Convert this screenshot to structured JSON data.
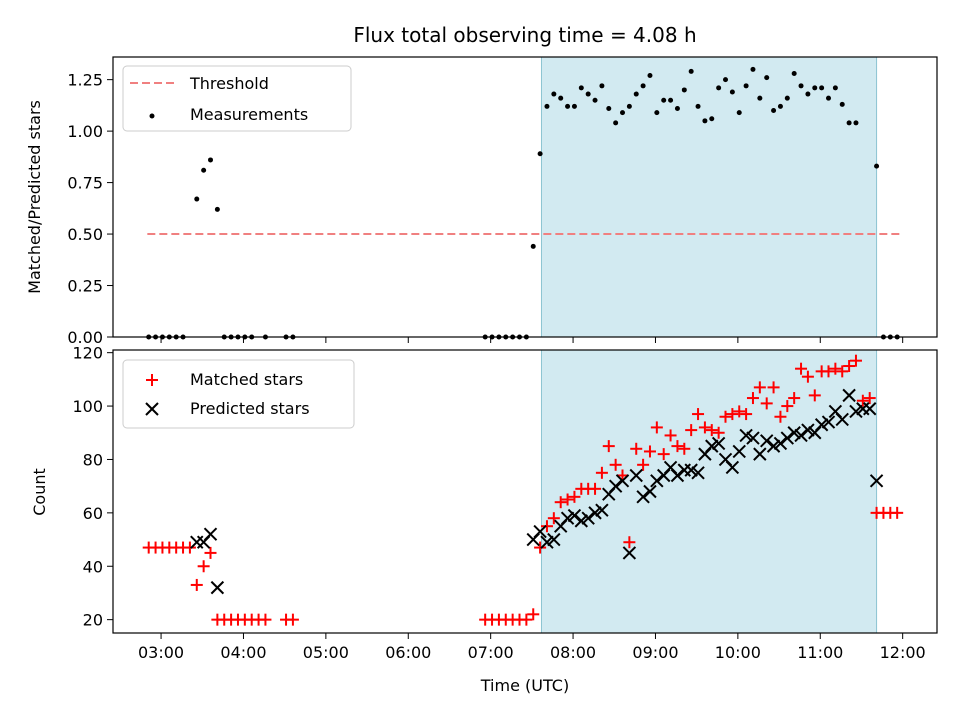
{
  "chart_data": [
    {
      "type": "scatter",
      "title": "Flux total observing time = 4.08 h",
      "ylabel": "Matched/Predicted stars",
      "xlabel": "",
      "xlim": [
        "02:25",
        "12:25"
      ],
      "ylim": [
        0,
        1.36
      ],
      "yticks": [
        "0.00",
        "0.25",
        "0.50",
        "0.75",
        "1.00",
        "1.25"
      ],
      "grid": false,
      "legend_position": "upper-left",
      "shaded_region": {
        "start": "07:37",
        "end": "11:41",
        "color": "#add8e6"
      },
      "threshold": {
        "name": "Threshold",
        "value": 0.5,
        "start": "02:50",
        "end": "12:00",
        "color": "#f08080"
      },
      "series": [
        {
          "name": "Measurements",
          "color": "#000000",
          "marker": "dot",
          "points": [
            [
              "02:51",
              0
            ],
            [
              "02:56",
              0
            ],
            [
              "03:01",
              0
            ],
            [
              "03:06",
              0
            ],
            [
              "03:11",
              0
            ],
            [
              "03:16",
              0
            ],
            [
              "03:26",
              0.67
            ],
            [
              "03:31",
              0.81
            ],
            [
              "03:36",
              0.86
            ],
            [
              "03:41",
              0.62
            ],
            [
              "03:46",
              0
            ],
            [
              "03:51",
              0
            ],
            [
              "03:56",
              0
            ],
            [
              "04:01",
              0
            ],
            [
              "04:06",
              0
            ],
            [
              "04:16",
              0
            ],
            [
              "04:31",
              0
            ],
            [
              "04:36",
              0
            ],
            [
              "06:56",
              0
            ],
            [
              "07:01",
              0
            ],
            [
              "07:06",
              0
            ],
            [
              "07:11",
              0
            ],
            [
              "07:16",
              0
            ],
            [
              "07:21",
              0
            ],
            [
              "07:26",
              0
            ],
            [
              "07:31",
              0.44
            ],
            [
              "07:36",
              0.89
            ],
            [
              "07:41",
              1.12
            ],
            [
              "07:46",
              1.18
            ],
            [
              "07:51",
              1.16
            ],
            [
              "07:56",
              1.12
            ],
            [
              "08:01",
              1.12
            ],
            [
              "08:06",
              1.21
            ],
            [
              "08:11",
              1.18
            ],
            [
              "08:16",
              1.15
            ],
            [
              "08:21",
              1.22
            ],
            [
              "08:26",
              1.11
            ],
            [
              "08:31",
              1.04
            ],
            [
              "08:36",
              1.09
            ],
            [
              "08:41",
              1.12
            ],
            [
              "08:46",
              1.18
            ],
            [
              "08:51",
              1.22
            ],
            [
              "08:56",
              1.27
            ],
            [
              "09:01",
              1.09
            ],
            [
              "09:06",
              1.15
            ],
            [
              "09:11",
              1.15
            ],
            [
              "09:16",
              1.11
            ],
            [
              "09:21",
              1.2
            ],
            [
              "09:26",
              1.29
            ],
            [
              "09:31",
              1.12
            ],
            [
              "09:36",
              1.05
            ],
            [
              "09:41",
              1.06
            ],
            [
              "09:46",
              1.21
            ],
            [
              "09:51",
              1.25
            ],
            [
              "09:56",
              1.19
            ],
            [
              "10:01",
              1.09
            ],
            [
              "10:06",
              1.22
            ],
            [
              "10:11",
              1.3
            ],
            [
              "10:16",
              1.16
            ],
            [
              "10:21",
              1.26
            ],
            [
              "10:26",
              1.1
            ],
            [
              "10:31",
              1.12
            ],
            [
              "10:36",
              1.16
            ],
            [
              "10:41",
              1.28
            ],
            [
              "10:46",
              1.22
            ],
            [
              "10:51",
              1.18
            ],
            [
              "10:56",
              1.21
            ],
            [
              "11:01",
              1.21
            ],
            [
              "11:06",
              1.16
            ],
            [
              "11:11",
              1.21
            ],
            [
              "11:16",
              1.13
            ],
            [
              "11:21",
              1.04
            ],
            [
              "11:26",
              1.04
            ],
            [
              "11:41",
              0.83
            ],
            [
              "11:46",
              0
            ],
            [
              "11:51",
              0
            ],
            [
              "11:56",
              0
            ]
          ]
        }
      ]
    },
    {
      "type": "scatter",
      "title": "",
      "ylabel": "Count",
      "xlabel": "Time (UTC)",
      "xlim": [
        "02:25",
        "12:25"
      ],
      "ylim": [
        15,
        121
      ],
      "xticks": [
        "03:00",
        "04:00",
        "05:00",
        "06:00",
        "07:00",
        "08:00",
        "09:00",
        "10:00",
        "11:00",
        "12:00"
      ],
      "yticks": [
        "20",
        "40",
        "60",
        "80",
        "100",
        "120"
      ],
      "grid": false,
      "legend_position": "upper-left",
      "shaded_region": {
        "start": "07:37",
        "end": "11:41",
        "color": "#add8e6"
      },
      "series": [
        {
          "name": "Matched stars",
          "color": "#ff0000",
          "marker": "plus",
          "points": [
            [
              "02:51",
              47
            ],
            [
              "02:56",
              47
            ],
            [
              "03:01",
              47
            ],
            [
              "03:06",
              47
            ],
            [
              "03:11",
              47
            ],
            [
              "03:16",
              47
            ],
            [
              "03:21",
              47
            ],
            [
              "03:26",
              33
            ],
            [
              "03:31",
              40
            ],
            [
              "03:36",
              45
            ],
            [
              "03:41",
              20
            ],
            [
              "03:46",
              20
            ],
            [
              "03:51",
              20
            ],
            [
              "03:56",
              20
            ],
            [
              "04:01",
              20
            ],
            [
              "04:06",
              20
            ],
            [
              "04:11",
              20
            ],
            [
              "04:16",
              20
            ],
            [
              "04:31",
              20
            ],
            [
              "04:36",
              20
            ],
            [
              "06:56",
              20
            ],
            [
              "07:01",
              20
            ],
            [
              "07:06",
              20
            ],
            [
              "07:11",
              20
            ],
            [
              "07:16",
              20
            ],
            [
              "07:21",
              20
            ],
            [
              "07:26",
              20
            ],
            [
              "07:31",
              22
            ],
            [
              "07:36",
              47
            ],
            [
              "07:41",
              55
            ],
            [
              "07:46",
              58
            ],
            [
              "07:51",
              64
            ],
            [
              "07:56",
              65
            ],
            [
              "08:01",
              66
            ],
            [
              "08:06",
              69
            ],
            [
              "08:11",
              69
            ],
            [
              "08:16",
              69
            ],
            [
              "08:21",
              75
            ],
            [
              "08:26",
              85
            ],
            [
              "08:31",
              78
            ],
            [
              "08:36",
              74
            ],
            [
              "08:41",
              49
            ],
            [
              "08:46",
              84
            ],
            [
              "08:51",
              78
            ],
            [
              "08:56",
              83
            ],
            [
              "09:01",
              92
            ],
            [
              "09:06",
              82
            ],
            [
              "09:11",
              89
            ],
            [
              "09:16",
              85
            ],
            [
              "09:21",
              84
            ],
            [
              "09:26",
              91
            ],
            [
              "09:31",
              97
            ],
            [
              "09:36",
              92
            ],
            [
              "09:41",
              91
            ],
            [
              "09:46",
              90
            ],
            [
              "09:51",
              96
            ],
            [
              "09:56",
              97
            ],
            [
              "10:01",
              98
            ],
            [
              "10:06",
              97
            ],
            [
              "10:11",
              103
            ],
            [
              "10:16",
              107
            ],
            [
              "10:21",
              101
            ],
            [
              "10:26",
              107
            ],
            [
              "10:31",
              96
            ],
            [
              "10:36",
              100
            ],
            [
              "10:41",
              103
            ],
            [
              "10:46",
              114
            ],
            [
              "10:51",
              111
            ],
            [
              "10:56",
              104
            ],
            [
              "11:01",
              113
            ],
            [
              "11:06",
              113
            ],
            [
              "11:11",
              114
            ],
            [
              "11:16",
              113
            ],
            [
              "11:21",
              115
            ],
            [
              "11:26",
              117
            ],
            [
              "11:31",
              102
            ],
            [
              "11:36",
              103
            ],
            [
              "11:41",
              60
            ],
            [
              "11:46",
              60
            ],
            [
              "11:51",
              60
            ],
            [
              "11:56",
              60
            ]
          ]
        },
        {
          "name": "Predicted stars",
          "color": "#000000",
          "marker": "x",
          "points": [
            [
              "03:26",
              49
            ],
            [
              "03:31",
              49
            ],
            [
              "03:36",
              52
            ],
            [
              "03:41",
              32
            ],
            [
              "07:31",
              50
            ],
            [
              "07:36",
              53
            ],
            [
              "07:41",
              49
            ],
            [
              "07:46",
              50
            ],
            [
              "07:51",
              55
            ],
            [
              "07:56",
              58
            ],
            [
              "08:01",
              59
            ],
            [
              "08:06",
              57
            ],
            [
              "08:11",
              58
            ],
            [
              "08:16",
              60
            ],
            [
              "08:21",
              61
            ],
            [
              "08:26",
              67
            ],
            [
              "08:31",
              70
            ],
            [
              "08:36",
              72
            ],
            [
              "08:41",
              45
            ],
            [
              "08:46",
              74
            ],
            [
              "08:51",
              66
            ],
            [
              "08:56",
              68
            ],
            [
              "09:01",
              72
            ],
            [
              "09:06",
              74
            ],
            [
              "09:11",
              77
            ],
            [
              "09:16",
              74
            ],
            [
              "09:21",
              76
            ],
            [
              "09:26",
              76
            ],
            [
              "09:31",
              75
            ],
            [
              "09:36",
              82
            ],
            [
              "09:41",
              85
            ],
            [
              "09:46",
              86
            ],
            [
              "09:51",
              80
            ],
            [
              "09:56",
              77
            ],
            [
              "10:01",
              83
            ],
            [
              "10:06",
              89
            ],
            [
              "10:11",
              88
            ],
            [
              "10:16",
              82
            ],
            [
              "10:21",
              87
            ],
            [
              "10:26",
              85
            ],
            [
              "10:31",
              86
            ],
            [
              "10:36",
              88
            ],
            [
              "10:41",
              90
            ],
            [
              "10:46",
              89
            ],
            [
              "10:51",
              91
            ],
            [
              "10:56",
              90
            ],
            [
              "11:01",
              93
            ],
            [
              "11:06",
              94
            ],
            [
              "11:11",
              98
            ],
            [
              "11:16",
              95
            ],
            [
              "11:21",
              104
            ],
            [
              "11:26",
              98
            ],
            [
              "11:31",
              99
            ],
            [
              "11:36",
              99
            ],
            [
              "11:41",
              72
            ]
          ]
        }
      ]
    }
  ]
}
